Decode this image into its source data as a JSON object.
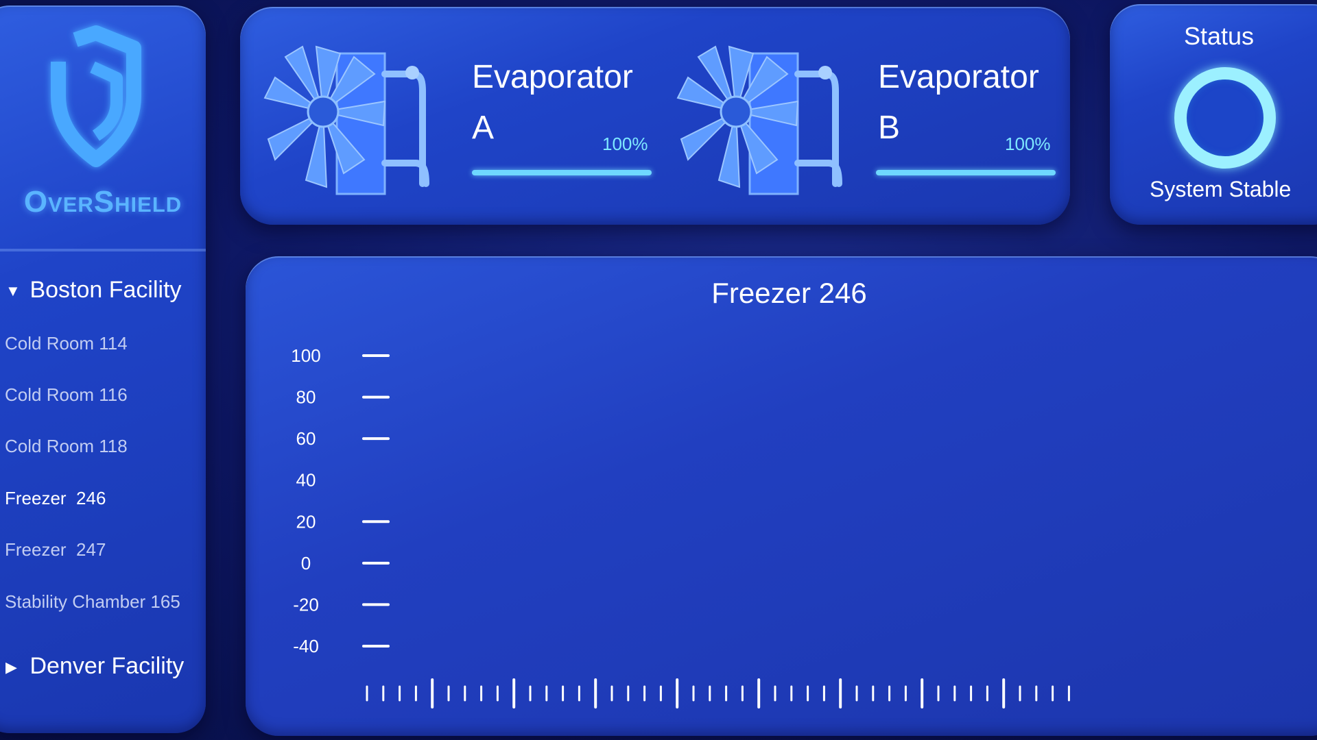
{
  "brand": {
    "name": "OverShield"
  },
  "sidebar": {
    "groups": [
      {
        "label": "Boston Facility",
        "expanded": true,
        "items": [
          "Cold Room 114",
          "Cold Room 116",
          "Cold Room 118",
          "Freezer  246",
          "Freezer  247",
          "Stability Chamber 165"
        ],
        "active_index": 3
      },
      {
        "label": "Denver Facility",
        "expanded": false,
        "items": []
      }
    ]
  },
  "evaporators": [
    {
      "title_line1": "Evaporator",
      "title_line2": "A",
      "percent_label": "100%",
      "level": 1.0
    },
    {
      "title_line1": "Evaporator",
      "title_line2": "B",
      "percent_label": "100%",
      "level": 1.0
    }
  ],
  "status": {
    "label": "Status",
    "text": "System Stable",
    "ring_color": "#9cf0ff"
  },
  "chart": {
    "title": "Freezer 246"
  },
  "chart_data": {
    "type": "line",
    "title": "Freezer 246",
    "xlabel": "",
    "ylabel": "",
    "y_ticks": [
      "100",
      "80",
      "60",
      "40",
      "20",
      "0",
      "-20",
      "-40"
    ],
    "y_tick_values": [
      100,
      80,
      60,
      40,
      20,
      0,
      -20,
      -40
    ],
    "ylim": [
      -40,
      100
    ],
    "series": [],
    "grid": false
  },
  "colors": {
    "accent": "#6fd8ff",
    "brand": "#5ab4ff",
    "panel": "#2148c8",
    "background": "#0d1660"
  }
}
